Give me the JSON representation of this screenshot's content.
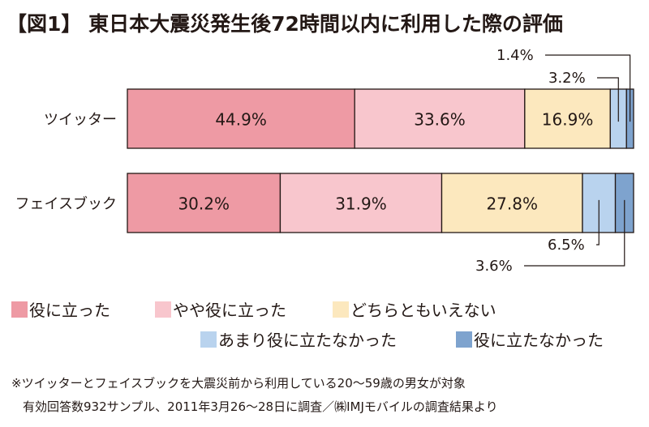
{
  "chart_data": {
    "type": "bar",
    "orientation": "horizontal",
    "stacked": "100%",
    "title": "【図1】 東日本大震災発生後72時間以内に利用した際の評価",
    "categories": [
      "ツイッター",
      "フェイスブック"
    ],
    "series": [
      {
        "name": "役に立った",
        "color": "#ee9aa4",
        "values": [
          44.9,
          30.2
        ]
      },
      {
        "name": "やや役に立った",
        "color": "#f8c6cd",
        "values": [
          33.6,
          31.9
        ]
      },
      {
        "name": "どちらともいえない",
        "color": "#fce8be",
        "values": [
          16.9,
          27.8
        ]
      },
      {
        "name": "あまり役に立たなかった",
        "color": "#b9d3ee",
        "values": [
          3.2,
          6.5
        ]
      },
      {
        "name": "役に立たなかった",
        "color": "#7ea3ce",
        "values": [
          1.4,
          3.6
        ]
      }
    ],
    "value_labels": [
      [
        "44.9%",
        "33.6%",
        "16.9%",
        "3.2%",
        "1.4%"
      ],
      [
        "30.2%",
        "31.9%",
        "27.8%",
        "6.5%",
        "3.6%"
      ]
    ],
    "legend_position": "bottom"
  },
  "notes": [
    "※ツイッターとフェイスブックを大震災前から利用している20～59歳の男女が対象",
    "有効回答数932サンプル、2011年3月26～28日に調査／㈱IMJモバイルの調査結果より"
  ]
}
